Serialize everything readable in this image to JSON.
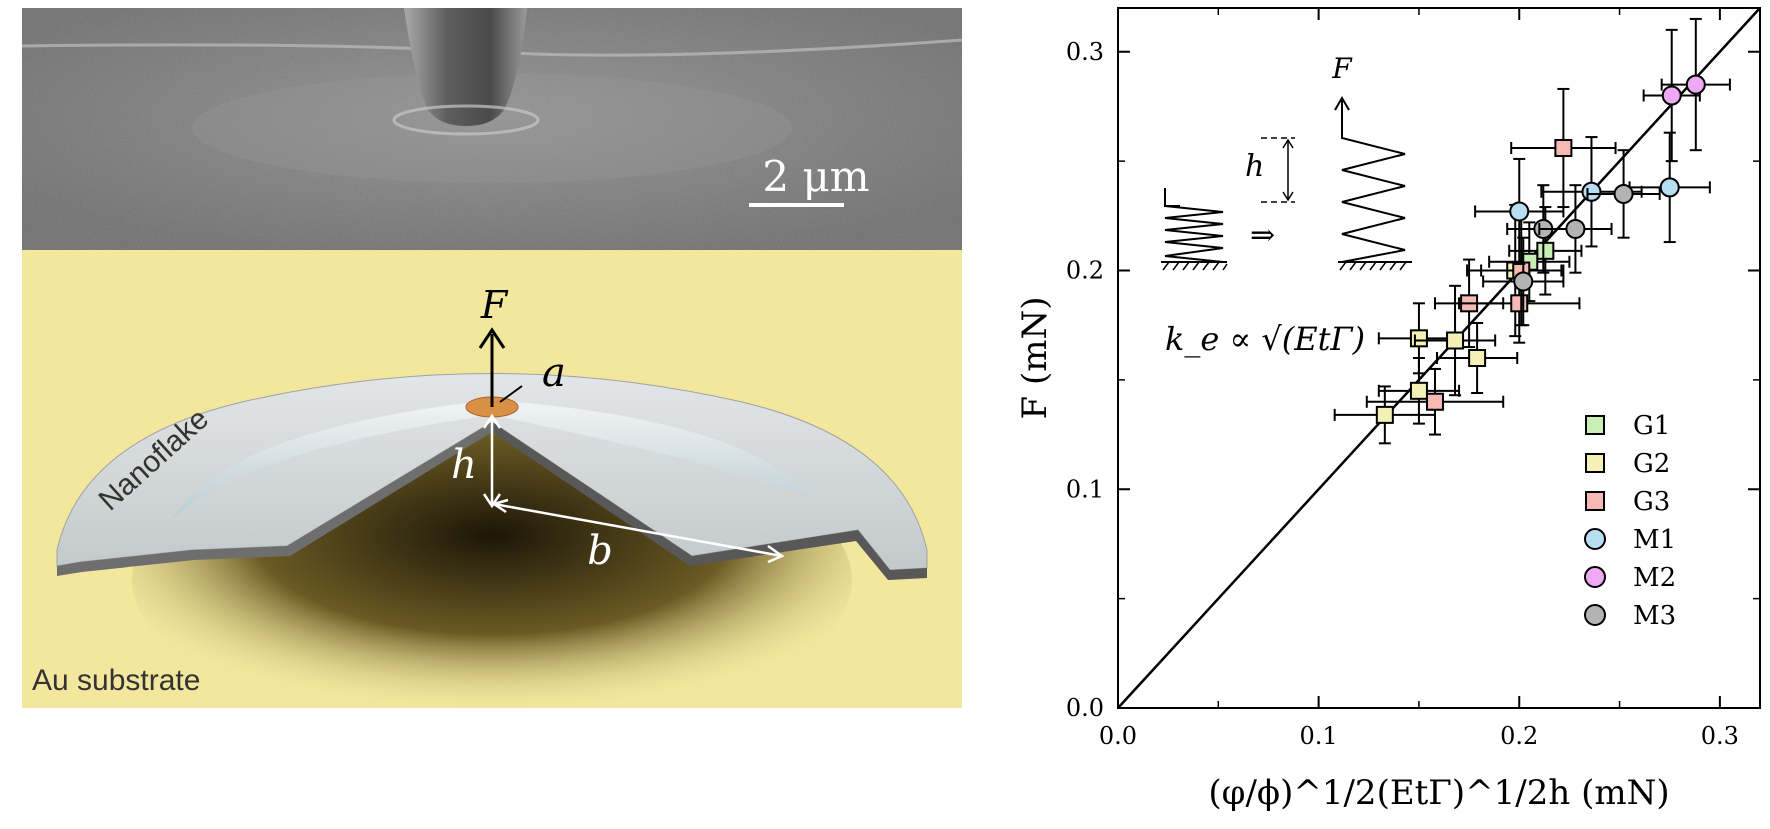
{
  "left_panel": {
    "scale_bar_label": "2 μm",
    "labels": {
      "force": "F",
      "radius": "a",
      "height": "h",
      "span": "b",
      "nanoflake": "Nanoflake",
      "substrate": "Au substrate"
    }
  },
  "colors": {
    "G1": "#c9f0b4",
    "G2": "#f5f1b6",
    "G3": "#f7b9b4",
    "M1": "#b8def4",
    "M2": "#eea8f4",
    "M3": "#b3b3b3",
    "fit_line": "#000000",
    "substrate": "#f3e79e"
  },
  "chart_data": {
    "type": "scatter",
    "xlabel": "(φ/ϕ)^1/2(EtΓ)^1/2h (mN)",
    "ylabel": "F (mN)",
    "xlim": [
      0.0,
      0.32
    ],
    "ylim": [
      0.0,
      0.32
    ],
    "xticks": [
      "0.0",
      "0.1",
      "0.2",
      "0.3"
    ],
    "yticks": [
      "0.0",
      "0.1",
      "0.2",
      "0.3"
    ],
    "fit_line": {
      "from": [
        0,
        0
      ],
      "to": [
        0.32,
        0.32
      ]
    },
    "legend": {
      "position": "bottom-right"
    },
    "inset": {
      "h_label": "h",
      "force_label": "F",
      "arrow": "⇒",
      "equation": "k_e ∝ √(EtΓ)"
    },
    "series": [
      {
        "name": "G1",
        "marker": "square",
        "points": [
          {
            "x": 0.213,
            "y": 0.209,
            "xerr": 0.018,
            "yerr": 0.02
          },
          {
            "x": 0.205,
            "y": 0.204,
            "xerr": 0.02,
            "yerr": 0.018
          }
        ]
      },
      {
        "name": "G2",
        "marker": "square",
        "points": [
          {
            "x": 0.133,
            "y": 0.134,
            "xerr": 0.025,
            "yerr": 0.013
          },
          {
            "x": 0.15,
            "y": 0.145,
            "xerr": 0.02,
            "yerr": 0.015
          },
          {
            "x": 0.15,
            "y": 0.169,
            "xerr": 0.02,
            "yerr": 0.016
          },
          {
            "x": 0.168,
            "y": 0.168,
            "xerr": 0.02,
            "yerr": 0.025
          },
          {
            "x": 0.179,
            "y": 0.16,
            "xerr": 0.02,
            "yerr": 0.016
          },
          {
            "x": 0.198,
            "y": 0.2,
            "xerr": 0.024,
            "yerr": 0.03
          }
        ]
      },
      {
        "name": "G3",
        "marker": "square",
        "points": [
          {
            "x": 0.158,
            "y": 0.14,
            "xerr": 0.034,
            "yerr": 0.015
          },
          {
            "x": 0.175,
            "y": 0.185,
            "xerr": 0.017,
            "yerr": 0.02
          },
          {
            "x": 0.2,
            "y": 0.185,
            "xerr": 0.03,
            "yerr": 0.018
          },
          {
            "x": 0.201,
            "y": 0.2,
            "xerr": 0.02,
            "yerr": 0.025
          },
          {
            "x": 0.222,
            "y": 0.256,
            "xerr": 0.026,
            "yerr": 0.027
          }
        ]
      },
      {
        "name": "M1",
        "marker": "circle",
        "points": [
          {
            "x": 0.2,
            "y": 0.227,
            "xerr": 0.022,
            "yerr": 0.024
          },
          {
            "x": 0.236,
            "y": 0.236,
            "xerr": 0.025,
            "yerr": 0.025
          },
          {
            "x": 0.275,
            "y": 0.238,
            "xerr": 0.02,
            "yerr": 0.025
          }
        ]
      },
      {
        "name": "M2",
        "marker": "circle",
        "points": [
          {
            "x": 0.276,
            "y": 0.28,
            "xerr": 0.014,
            "yerr": 0.03
          },
          {
            "x": 0.288,
            "y": 0.285,
            "xerr": 0.017,
            "yerr": 0.03
          }
        ]
      },
      {
        "name": "M3",
        "marker": "circle",
        "points": [
          {
            "x": 0.202,
            "y": 0.195,
            "xerr": 0.02,
            "yerr": 0.02
          },
          {
            "x": 0.212,
            "y": 0.219,
            "xerr": 0.018,
            "yerr": 0.02
          },
          {
            "x": 0.228,
            "y": 0.219,
            "xerr": 0.018,
            "yerr": 0.02
          },
          {
            "x": 0.252,
            "y": 0.235,
            "xerr": 0.018,
            "yerr": 0.02
          }
        ]
      }
    ]
  }
}
